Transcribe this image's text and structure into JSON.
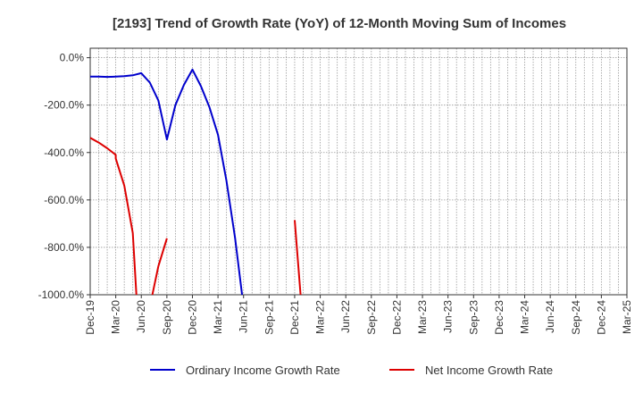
{
  "chart_data": {
    "type": "line",
    "title": "[2193]  Trend of Growth Rate (YoY) of 12-Month Moving Sum of Incomes",
    "xlabel": "",
    "ylabel": "",
    "y_ticks": [
      "0.0%",
      "-200.0%",
      "-400.0%",
      "-600.0%",
      "-800.0%",
      "-1000.0%"
    ],
    "y_tick_values": [
      0,
      -200,
      -400,
      -600,
      -800,
      -1000
    ],
    "ylim": [
      -1000,
      40
    ],
    "x_ticks": [
      "Dec-19",
      "Mar-20",
      "Jun-20",
      "Sep-20",
      "Dec-20",
      "Mar-21",
      "Jun-21",
      "Sep-21",
      "Dec-21",
      "Mar-22",
      "Jun-22",
      "Sep-22",
      "Dec-22",
      "Mar-23",
      "Jun-23",
      "Sep-23",
      "Dec-23",
      "Mar-24",
      "Jun-24",
      "Sep-24",
      "Dec-24",
      "Mar-25"
    ],
    "x_range_months": [
      0,
      63
    ],
    "grid": true,
    "legend_position": "bottom",
    "series": [
      {
        "name": "Ordinary Income Growth Rate",
        "color": "#0000cc",
        "points": [
          [
            0,
            -80
          ],
          [
            1,
            -80
          ],
          [
            2,
            -81
          ],
          [
            3,
            -80
          ],
          [
            4,
            -78
          ],
          [
            5,
            -74
          ],
          [
            6,
            -65
          ],
          [
            7,
            -105
          ],
          [
            8,
            -180
          ],
          [
            9,
            -345
          ],
          [
            10,
            -200
          ],
          [
            11,
            -115
          ],
          [
            12,
            -50
          ],
          [
            13,
            -120
          ],
          [
            14,
            -210
          ],
          [
            15,
            -325
          ],
          [
            16,
            -520
          ],
          [
            17,
            -760
          ],
          [
            18,
            -1050
          ]
        ]
      },
      {
        "name": "Net Income Growth Rate",
        "color": "#dd0000",
        "segments": [
          [
            [
              0,
              -338
            ],
            [
              1,
              -358
            ],
            [
              2,
              -382
            ],
            [
              3,
              -410
            ],
            [
              3,
              -425
            ],
            [
              4,
              -540
            ],
            [
              5,
              -740
            ],
            [
              5.5,
              -1050
            ]
          ],
          [
            [
              7,
              -1050
            ],
            [
              8,
              -880
            ],
            [
              9,
              -762
            ]
          ],
          [
            [
              24,
              -685
            ],
            [
              24.8,
              -1050
            ]
          ]
        ]
      }
    ]
  }
}
